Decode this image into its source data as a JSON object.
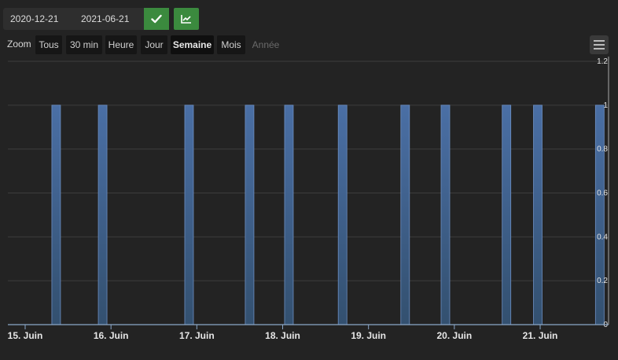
{
  "filter": {
    "from_date": "2020-12-21",
    "to_date": "2021-06-21",
    "apply_icon": "check-icon",
    "chart_icon": "line-chart-icon"
  },
  "zoom": {
    "label": "Zoom",
    "buttons": [
      "Tous",
      "30 min",
      "Heure",
      "Jour",
      "Semaine",
      "Mois",
      "Année"
    ],
    "active": "Semaine",
    "disabled": "Année"
  },
  "menu_icon": "hamburger-menu-icon",
  "chart_data": {
    "type": "bar",
    "title": "",
    "xlabel": "",
    "ylabel": "",
    "ylim": [
      0,
      1.2
    ],
    "yticks": [
      "0",
      "0.2",
      "0.4",
      "0.6",
      "0.8",
      "1",
      "1.2"
    ],
    "xticks": [
      "15. Juin",
      "16. Juin",
      "17. Juin",
      "18. Juin",
      "19. Juin",
      "20. Juin",
      "21. Juin"
    ],
    "grid": true,
    "bar_color": "#4a6fa5",
    "series": [
      {
        "x": [
          "2021-06-15 08:40",
          "2021-06-15 21:40",
          "2021-06-16 21:50",
          "2021-06-17 14:45",
          "2021-06-18 01:45",
          "2021-06-18 16:45",
          "2021-06-19 10:15",
          "2021-06-19 21:30",
          "2021-06-20 14:35",
          "2021-06-20 23:20",
          "2021-06-21 16:40"
        ],
        "values": [
          1,
          1,
          1,
          1,
          1,
          1,
          1,
          1,
          1,
          1,
          1
        ]
      }
    ]
  }
}
